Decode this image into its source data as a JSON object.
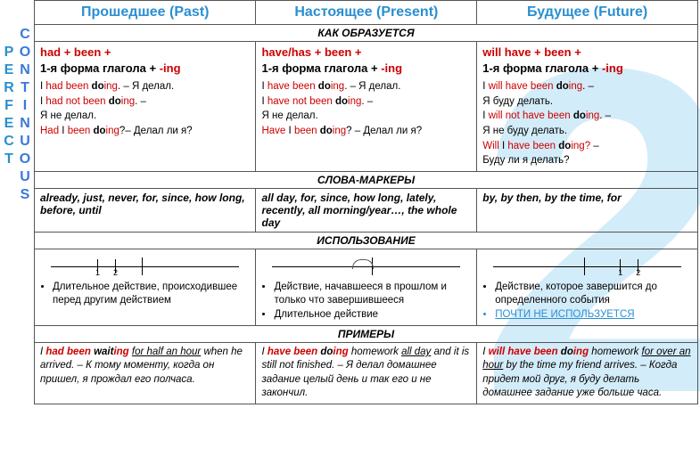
{
  "colors": {
    "header": "#2a8fd1",
    "text": "#000000",
    "emphasis": "#cc0000",
    "bg_watermark": "rgba(80,180,230,0.25)",
    "border": "#555555"
  },
  "bg_number": "2",
  "vertical": {
    "left": "PERFECT",
    "right": "CONTINUOUS"
  },
  "headers": {
    "past": "Прошедшее (Past)",
    "present": "Настоящее (Present)",
    "future": "Будущее (Future)"
  },
  "sections": {
    "formation": "КАК ОБРАЗУЕТСЯ",
    "markers": "СЛОВА-МАРКЕРЫ",
    "usage": "ИСПОЛЬЗОВАНИЕ",
    "examples": "ПРИМЕРЫ"
  },
  "past": {
    "formula_aux": "had + been +",
    "formula_verb_pre": "1-я форма глагола + ",
    "formula_verb_suf": "-ing",
    "ex1_pre": "I ",
    "ex1_aux": "had been",
    "ex1_do": " do",
    "ex1_ing": "ing",
    "ex1_post": ". – Я делал.",
    "ex2_pre": "I ",
    "ex2_aux": "had not been",
    "ex2_do": " do",
    "ex2_ing": "ing",
    "ex2_post": ". –",
    "ex2_nl": "Я не делал.",
    "ex3_aux": "Had",
    "ex3_mid": " I ",
    "ex3_been": "been",
    "ex3_do": " do",
    "ex3_ing": "ing",
    "ex3_post": "?– Делал ли я?",
    "markers": "already, just, never, for, since, how long, before, until",
    "usage1": "Длительное действие, происходившее перед другим действием",
    "tl": {
      "main": 110,
      "t1": 60,
      "t2": 80,
      "l1": "1",
      "l2": "2"
    },
    "ex_i": "I ",
    "ex_aux": "had been",
    "ex_verb": " wait",
    "ex_ing": "ing",
    "ex_sp": " ",
    "ex_u": "for half an hour",
    "ex_rest": " when he arrived. – К тому моменту, когда он пришел, я прождал его полчаса."
  },
  "present": {
    "formula_aux": "have/has + been +",
    "formula_verb_pre": "1-я форма глагола + ",
    "formula_verb_suf": "-ing",
    "ex1_pre": "I ",
    "ex1_aux": "have been",
    "ex1_do": " do",
    "ex1_ing": "ing",
    "ex1_post": ". – Я делал.",
    "ex2_pre": "I ",
    "ex2_aux": "have not been",
    "ex2_do": " do",
    "ex2_ing": "ing",
    "ex2_post": ". –",
    "ex2_nl": "Я не делал.",
    "ex3_aux": "Have",
    "ex3_mid": " I ",
    "ex3_been": "been",
    "ex3_do": " do",
    "ex3_ing": "ing",
    "ex3_post": "? – Делал ли я?",
    "markers": "all day, for, since, how long, lately, recently, all morning/year…, the whole day",
    "usage1": "Действие, начавшееся в прошлом и только что завершившееся",
    "usage2": "Длительное действие",
    "tl": {
      "main": 120,
      "arc_l": 98
    },
    "ex_i": "I ",
    "ex_aux": "have been",
    "ex_verb": " do",
    "ex_ing": "ing",
    "ex_sp": " homework ",
    "ex_u": "all day",
    "ex_rest": " and it is still not finished. – Я делал домашнее задание целый день и так его и не закончил."
  },
  "future": {
    "formula_aux": "will have + been +",
    "formula_verb_pre": "1-я форма глагола + ",
    "formula_verb_suf": "-ing",
    "ex1_pre": "I ",
    "ex1_aux": "will have been",
    "ex1_do": " do",
    "ex1_ing": "ing",
    "ex1_post": ". –",
    "ex1_nl": "Я буду делать.",
    "ex2_pre": "I ",
    "ex2_aux": "will not have been",
    "ex2_do": " do",
    "ex2_ing": "ing",
    "ex2_post": ". –",
    "ex2_nl": "Я не буду делать.",
    "ex3_aux": "Will",
    "ex3_mid": " I ",
    "ex3_have": "have been",
    "ex3_do": " do",
    "ex3_ing": "ing",
    "ex3_q": "?",
    "ex3_post": " –",
    "ex3_nl": "Буду ли я делать?",
    "markers": "by, by then, by the time, for",
    "usage1": "Действие, которое завершится до определенного события",
    "usage2": "ПОЧТИ НЕ ИСПОЛЬЗУЕТСЯ",
    "tl": {
      "main": 110,
      "t1": 150,
      "t2": 170,
      "l1": "1",
      "l2": "2"
    },
    "ex_i": "I ",
    "ex_aux": "will have been",
    "ex_verb": " do",
    "ex_ing": "ing",
    "ex_sp": " homework ",
    "ex_u": "for over an hour",
    "ex_rest": " by the time my friend arrives. – Когда придет мой друг, я буду делать домашнее задание уже больше часа."
  }
}
